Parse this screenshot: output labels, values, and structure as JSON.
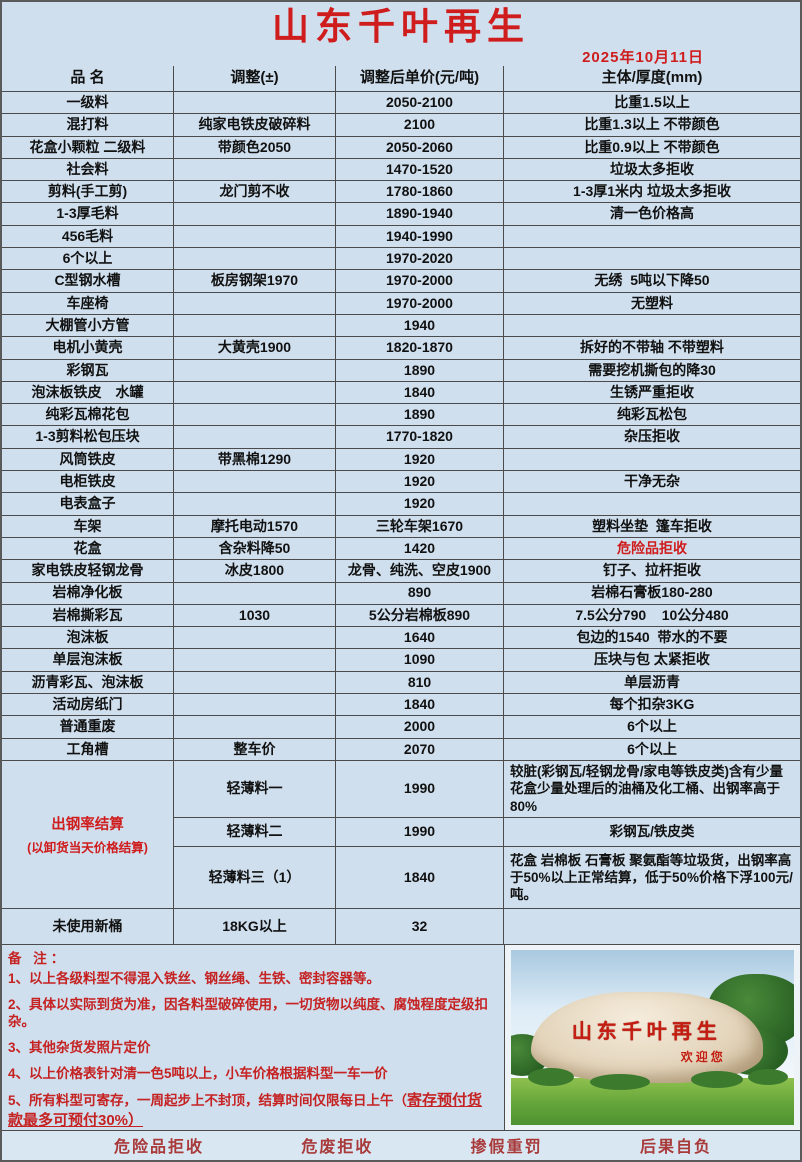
{
  "title": "山东千叶再生",
  "date": "2025年10月11日",
  "colors": {
    "accent_red": "#cf1c1c",
    "note_red": "#c52222",
    "footer_red": "#a83a3a",
    "cell_bg": "#cfdfee"
  },
  "table": {
    "headers": [
      "品 名",
      "调整(±)",
      "调整后单价(元/吨)",
      "主体/厚度(mm)"
    ],
    "rows": [
      {
        "name": "一级料",
        "adjust": "",
        "price": "2050-2100",
        "note": "比重1.5以上"
      },
      {
        "name": "混打料",
        "adjust": "纯家电铁皮破碎料",
        "price": "2100",
        "note": "比重1.3以上 不带颜色"
      },
      {
        "name": "花盒小颗粒 二级料",
        "adjust": "带颜色2050",
        "price": "2050-2060",
        "note": "比重0.9以上 不带颜色"
      },
      {
        "name": "社会料",
        "adjust": "",
        "price": "1470-1520",
        "note": "垃圾太多拒收"
      },
      {
        "name": "剪料(手工剪)",
        "adjust": "龙门剪不收",
        "price": "1780-1860",
        "note": "1-3厚1米内 垃圾太多拒收"
      },
      {
        "name": "1-3厚毛料",
        "adjust": "",
        "price": "1890-1940",
        "note": "清一色价格高"
      },
      {
        "name": "456毛料",
        "adjust": "",
        "price": "1940-1990",
        "note": ""
      },
      {
        "name": "6个以上",
        "adjust": "",
        "price": "1970-2020",
        "note": ""
      },
      {
        "name": "C型钢水槽",
        "adjust": "板房钢架1970",
        "price": "1970-2000",
        "note": "无绣  5吨以下降50"
      },
      {
        "name": "车座椅",
        "adjust": "",
        "price": "1970-2000",
        "note": "无塑料"
      },
      {
        "name": "大棚管小方管",
        "adjust": "",
        "price": "1940",
        "note": ""
      },
      {
        "name": "电机小黄壳",
        "adjust": "大黄壳1900",
        "price": "1820-1870",
        "note": "拆好的不带轴 不带塑料"
      },
      {
        "name": "彩钢瓦",
        "adjust": "",
        "price": "1890",
        "note": "需要挖机撕包的降30"
      },
      {
        "name": "泡沫板铁皮　水罐",
        "adjust": "",
        "price": "1840",
        "note": "生锈严重拒收"
      },
      {
        "name": "纯彩瓦棉花包",
        "adjust": "",
        "price": "1890",
        "note": "纯彩瓦松包"
      },
      {
        "name": "1-3剪料松包压块",
        "adjust": "",
        "price": "1770-1820",
        "note": "杂压拒收"
      },
      {
        "name": "风筒铁皮",
        "adjust": "带黑棉1290",
        "price": "1920",
        "note": ""
      },
      {
        "name": "电柜铁皮",
        "adjust": "",
        "price": "1920",
        "note": "干净无杂"
      },
      {
        "name": "电表盒子",
        "adjust": "",
        "price": "1920",
        "note": ""
      },
      {
        "name": "车架",
        "adjust": "摩托电动1570",
        "price": "三轮车架1670",
        "note": "塑料坐垫  篷车拒收"
      },
      {
        "name": "花盒",
        "adjust": "含杂料降50",
        "price": "1420",
        "note": "危险品拒收",
        "note_red": true
      },
      {
        "name": "家电铁皮轻钢龙骨",
        "adjust": "冰皮1800",
        "price": "龙骨、纯洗、空皮1900",
        "note": "钉子、拉杆拒收"
      },
      {
        "name": "岩棉净化板",
        "adjust": "",
        "price": "890",
        "note": "岩棉石膏板180-280"
      },
      {
        "name": "岩棉撕彩瓦",
        "adjust": "1030",
        "price": "5公分岩棉板890",
        "note": "7.5公分790    10公分480"
      },
      {
        "name": "泡沫板",
        "adjust": "",
        "price": "1640",
        "note": "包边的1540  带水的不要"
      },
      {
        "name": "单层泡沫板",
        "adjust": "",
        "price": "1090",
        "note": "压块与包 太紧拒收"
      },
      {
        "name": "沥青彩瓦、泡沫板",
        "adjust": "",
        "price": "810",
        "note": "单层沥青"
      },
      {
        "name": "活动房纸门",
        "adjust": "",
        "price": "1840",
        "note": "每个扣杂3KG"
      },
      {
        "name": "普通重废",
        "adjust": "",
        "price": "2000",
        "note": "6个以上"
      },
      {
        "name": "工角槽",
        "adjust": "整车价",
        "price": "2070",
        "note": "6个以上"
      }
    ]
  },
  "rate_section": {
    "label": "出钢率结算",
    "sublabel": "(以卸货当天价格结算)",
    "rows": [
      {
        "grade": "轻薄料一",
        "price": "1990",
        "note": "较脏(彩钢瓦/轻钢龙骨/家电等铁皮类)含有少量花盒少量处理后的油桶及化工桶、出钢率高于80%"
      },
      {
        "grade": "轻薄料二",
        "price": "1990",
        "note": "彩钢瓦/铁皮类"
      },
      {
        "grade": "轻薄料三（1）",
        "price": "1840",
        "note": "花盒 岩棉板 石膏板 聚氨酯等垃圾货，出钢率高于50%以上正常结算，低于50%价格下浮100元/吨。"
      }
    ]
  },
  "last_row": {
    "name": "未使用新桶",
    "adjust": "18KG以上",
    "price": "32",
    "note": ""
  },
  "notes": {
    "heading": "备 注：",
    "items": [
      "1、以上各级料型不得混入铁丝、钢丝绳、生铁、密封容器等。",
      "2、具体以实际到货为准，因各料型破碎使用，一切货物以纯度、腐蚀程度定级扣杂。",
      "3、其他杂货发照片定价",
      "4、以上价格表针对清一色5吨以上，小车价格根据料型一车一价"
    ],
    "item5_prefix": "5、所有料型可寄存，一周起步上不封顶，结算时间仅限每日上午（",
    "item5_underlined": "寄存预付货款最多可预付30%）"
  },
  "photo": {
    "stone_text": "山东千叶再生",
    "welcome_text": "欢迎您"
  },
  "footer": {
    "items": [
      "危险品拒收",
      "危废拒收",
      "掺假重罚",
      "后果自负"
    ]
  }
}
